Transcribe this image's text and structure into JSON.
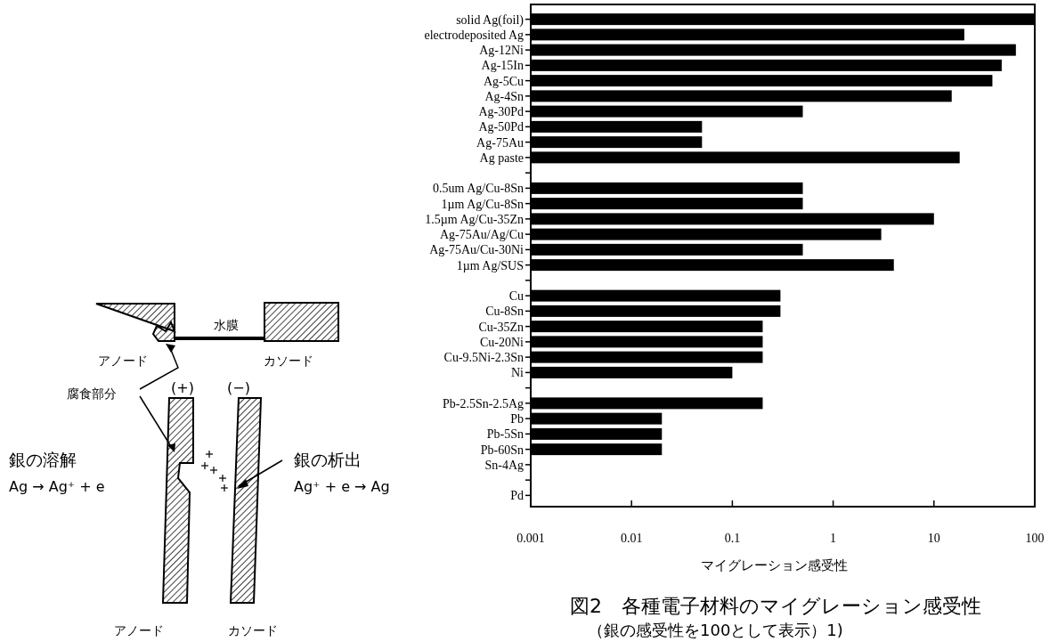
{
  "chart_data": {
    "type": "bar",
    "orientation": "horizontal",
    "log": "x",
    "title": "図2　各種電子材料のマイグレーション感受性",
    "subtitle": "（銀の感受性を100として表示）1)",
    "xlabel": "マイグレーション感受性",
    "categories": [
      "solid Ag(foil)",
      "electrodeposited Ag",
      "Ag-12Ni",
      "Ag-15In",
      "Ag-5Cu",
      "Ag-4Sn",
      "Ag-30Pd",
      "Ag-50Pd",
      "Ag-75Au",
      "Ag paste",
      null,
      "0.5um Ag/Cu-8Sn",
      "1µm Ag/Cu-8Sn",
      "1.5µm Ag/Cu-35Zn",
      "Ag-75Au/Ag/Cu",
      "Ag-75Au/Cu-30Ni",
      "1µm Ag/SUS",
      null,
      "Cu",
      "Cu-8Sn",
      "Cu-35Zn",
      "Cu-20Ni",
      "Cu-9.5Ni-2.3Sn",
      "Ni",
      null,
      "Pb-2.5Sn-2.5Ag",
      "Pb",
      "Pb-5Sn",
      "Pb-60Sn",
      "Sn-4Ag",
      null,
      "Pd"
    ],
    "values": [
      100,
      20,
      65,
      47,
      38,
      15,
      0.5,
      0.05,
      0.05,
      18,
      null,
      0.5,
      0.5,
      10,
      3,
      0.5,
      4,
      null,
      0.3,
      0.3,
      0.2,
      0.2,
      0.2,
      0.1,
      null,
      0.2,
      0.02,
      0.02,
      0.02,
      null,
      null,
      null
    ],
    "color": "#000000",
    "xlim": [
      0.001,
      100
    ],
    "xticks": [
      0.001,
      0.01,
      0.1,
      1,
      10,
      100
    ],
    "annotations": [
      "水膜",
      "アノード",
      "カソード",
      "腐食部分",
      "(+)",
      "(−)",
      "銀の溶解",
      "Ag → Ag⁺ + e",
      "銀の析出",
      "Ag⁺ + e → Ag",
      "アノード",
      "カソード"
    ]
  }
}
